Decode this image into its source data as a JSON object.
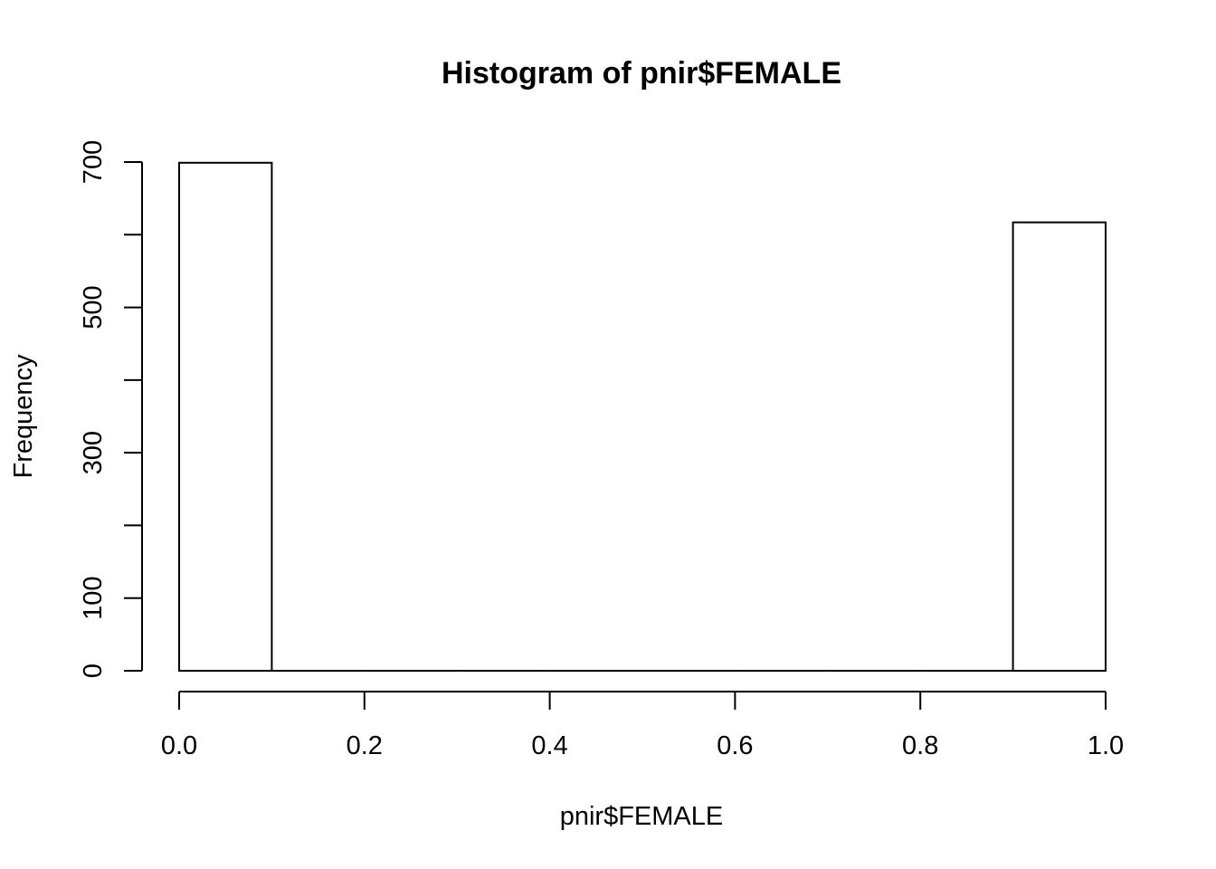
{
  "chart_data": {
    "type": "bar",
    "title": "Histogram of pnir$FEMALE",
    "xlabel": "pnir$FEMALE",
    "ylabel": "Frequency",
    "x_ticks": [
      0.0,
      0.2,
      0.4,
      0.6,
      0.8,
      1.0
    ],
    "x_tick_labels": [
      "0.0",
      "0.2",
      "0.4",
      "0.6",
      "0.8",
      "1.0"
    ],
    "y_ticks": [
      0,
      100,
      200,
      300,
      400,
      500,
      600,
      700
    ],
    "y_tick_labels": [
      "0",
      "100",
      "",
      "300",
      "",
      "500",
      "",
      "700"
    ],
    "xlim": [
      0,
      1
    ],
    "ylim": [
      0,
      700
    ],
    "bins": [
      {
        "x0": 0.0,
        "x1": 0.1,
        "count": 699
      },
      {
        "x0": 0.1,
        "x1": 0.2,
        "count": 0
      },
      {
        "x0": 0.2,
        "x1": 0.3,
        "count": 0
      },
      {
        "x0": 0.3,
        "x1": 0.4,
        "count": 0
      },
      {
        "x0": 0.4,
        "x1": 0.5,
        "count": 0
      },
      {
        "x0": 0.5,
        "x1": 0.6,
        "count": 0
      },
      {
        "x0": 0.6,
        "x1": 0.7,
        "count": 0
      },
      {
        "x0": 0.7,
        "x1": 0.8,
        "count": 0
      },
      {
        "x0": 0.8,
        "x1": 0.9,
        "count": 0
      },
      {
        "x0": 0.9,
        "x1": 1.0,
        "count": 617
      }
    ],
    "grid": false,
    "bar_fill": "#ffffff",
    "bar_stroke": "#000000"
  }
}
